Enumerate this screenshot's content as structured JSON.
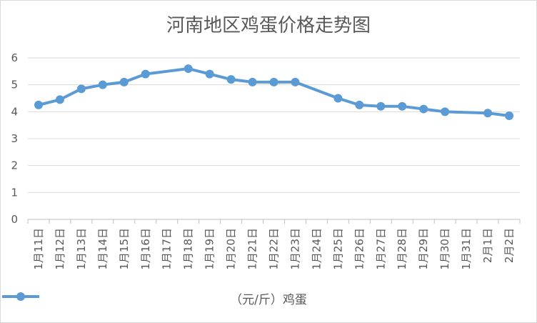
{
  "chart_data": {
    "type": "line",
    "title": "河南地区鸡蛋价格走势图",
    "xlabel": "",
    "ylabel": "",
    "ylim": [
      0,
      6
    ],
    "yticks": [
      0,
      1,
      2,
      3,
      4,
      5,
      6
    ],
    "categories": [
      "1月11日",
      "1月12日",
      "1月13日",
      "1月14日",
      "1月15日",
      "1月16日",
      "1月17日",
      "1月18日",
      "1月19日",
      "1月20日",
      "1月21日",
      "1月22日",
      "1月23日",
      "1月24日",
      "1月25日",
      "1月26日",
      "1月27日",
      "1月28日",
      "1月29日",
      "1月30日",
      "1月31日",
      "2月1日",
      "2月2日"
    ],
    "series": [
      {
        "name": "（元/斤）鸡蛋",
        "values": [
          4.25,
          4.45,
          4.85,
          5.0,
          5.1,
          5.4,
          null,
          5.6,
          5.4,
          5.2,
          5.1,
          5.1,
          5.1,
          null,
          4.5,
          4.25,
          4.2,
          4.2,
          4.1,
          4.0,
          null,
          3.95,
          3.85
        ]
      }
    ],
    "legend_position": "bottom",
    "grid": true,
    "colors": {
      "line": "#5b9bd5",
      "grid": "#d9d9d9",
      "text": "#595959"
    }
  }
}
